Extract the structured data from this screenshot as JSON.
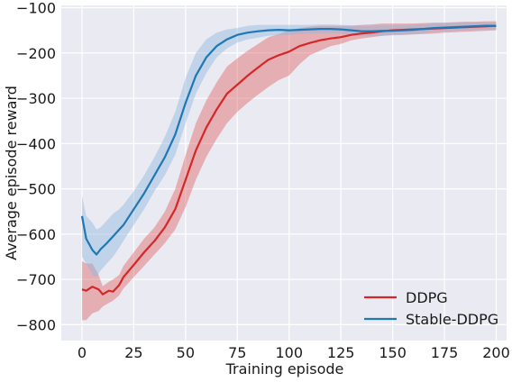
{
  "chart_data": {
    "type": "line",
    "title": "",
    "xlabel": "Training episode",
    "ylabel": "Average episode reward",
    "xlim": [
      -10,
      205
    ],
    "ylim": [
      -835,
      -95
    ],
    "x_ticks": [
      0,
      25,
      50,
      75,
      100,
      125,
      150,
      175,
      200
    ],
    "y_ticks": [
      -100,
      -200,
      -300,
      -400,
      -500,
      -600,
      -700,
      -800
    ],
    "x_tick_labels": [
      "0",
      "25",
      "50",
      "75",
      "100",
      "125",
      "150",
      "175",
      "200"
    ],
    "y_tick_labels": [
      "−100",
      "−200",
      "−300",
      "−400",
      "−500",
      "−600",
      "−700",
      "−800"
    ],
    "grid": true,
    "background": "#EAEAF2",
    "legend_position": "lower-right",
    "series": [
      {
        "name": "DDPG",
        "color": "#D62728",
        "band_color": "#E06666",
        "x": [
          0,
          2,
          5,
          8,
          10,
          13,
          15,
          18,
          20,
          25,
          30,
          35,
          40,
          45,
          50,
          55,
          60,
          65,
          70,
          75,
          80,
          85,
          90,
          95,
          100,
          105,
          110,
          115,
          120,
          125,
          130,
          135,
          140,
          145,
          150,
          155,
          160,
          165,
          170,
          175,
          180,
          185,
          190,
          195,
          200
        ],
        "values": [
          -722,
          -725,
          -716,
          -722,
          -733,
          -725,
          -727,
          -712,
          -695,
          -668,
          -640,
          -615,
          -585,
          -545,
          -480,
          -415,
          -365,
          -325,
          -290,
          -270,
          -250,
          -232,
          -215,
          -205,
          -197,
          -185,
          -178,
          -172,
          -168,
          -165,
          -160,
          -157,
          -155,
          -152,
          -150,
          -149,
          -148,
          -147,
          -146,
          -145,
          -144,
          -143,
          -142,
          -141,
          -140
        ],
        "lower": [
          -790,
          -790,
          -775,
          -770,
          -760,
          -752,
          -747,
          -735,
          -720,
          -695,
          -670,
          -645,
          -620,
          -590,
          -540,
          -480,
          -430,
          -390,
          -355,
          -330,
          -310,
          -292,
          -275,
          -260,
          -250,
          -225,
          -205,
          -195,
          -185,
          -180,
          -172,
          -168,
          -165,
          -162,
          -160,
          -160,
          -159,
          -158,
          -157,
          -155,
          -154,
          -153,
          -152,
          -151,
          -150
        ],
        "upper": [
          -660,
          -665,
          -665,
          -690,
          -715,
          -705,
          -700,
          -690,
          -670,
          -640,
          -610,
          -585,
          -550,
          -500,
          -425,
          -355,
          -305,
          -265,
          -230,
          -212,
          -195,
          -180,
          -165,
          -158,
          -150,
          -145,
          -142,
          -140,
          -140,
          -140,
          -140,
          -138,
          -137,
          -135,
          -135,
          -135,
          -135,
          -134,
          -133,
          -133,
          -132,
          -131,
          -131,
          -130,
          -130
        ]
      },
      {
        "name": "Stable-DDPG",
        "color": "#1F77B4",
        "band_color": "#8FB9DE",
        "x": [
          0,
          2,
          5,
          7,
          9,
          12,
          15,
          18,
          20,
          25,
          30,
          35,
          40,
          45,
          50,
          55,
          60,
          65,
          70,
          75,
          80,
          85,
          90,
          95,
          100,
          105,
          110,
          115,
          120,
          125,
          130,
          135,
          140,
          145,
          150,
          155,
          160,
          165,
          170,
          175,
          180,
          185,
          190,
          195,
          200
        ],
        "values": [
          -560,
          -610,
          -635,
          -645,
          -633,
          -620,
          -605,
          -590,
          -580,
          -545,
          -510,
          -470,
          -430,
          -380,
          -310,
          -250,
          -210,
          -185,
          -170,
          -160,
          -155,
          -152,
          -150,
          -149,
          -150,
          -149,
          -148,
          -147,
          -147,
          -148,
          -150,
          -152,
          -152,
          -151,
          -151,
          -150,
          -149,
          -147,
          -145,
          -144,
          -143,
          -142,
          -141,
          -140,
          -140
        ],
        "lower": [
          -650,
          -665,
          -690,
          -695,
          -680,
          -665,
          -650,
          -630,
          -615,
          -580,
          -545,
          -505,
          -470,
          -425,
          -355,
          -290,
          -245,
          -210,
          -190,
          -177,
          -170,
          -166,
          -162,
          -160,
          -160,
          -158,
          -157,
          -156,
          -156,
          -157,
          -160,
          -163,
          -163,
          -162,
          -161,
          -160,
          -158,
          -156,
          -153,
          -152,
          -151,
          -150,
          -149,
          -148,
          -148
        ],
        "upper": [
          -515,
          -560,
          -575,
          -590,
          -585,
          -570,
          -555,
          -545,
          -535,
          -505,
          -470,
          -430,
          -385,
          -330,
          -255,
          -200,
          -170,
          -155,
          -148,
          -145,
          -140,
          -138,
          -138,
          -138,
          -138,
          -138,
          -138,
          -137,
          -137,
          -138,
          -139,
          -140,
          -140,
          -139,
          -139,
          -138,
          -137,
          -136,
          -135,
          -134,
          -133,
          -132,
          -132,
          -132,
          -132
        ]
      }
    ]
  }
}
